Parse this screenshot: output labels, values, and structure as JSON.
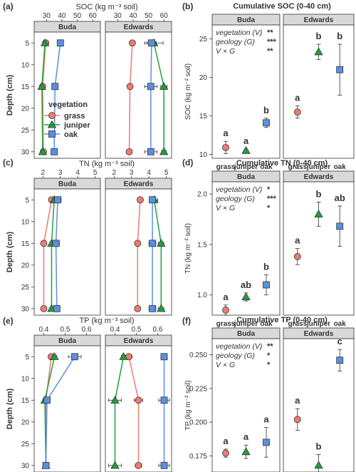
{
  "colors": {
    "grass": "#F07A70",
    "juniper": "#1DA13A",
    "oak": "#5B8FE0",
    "strip": "#D9D9D9",
    "frame": "#333333",
    "text": "#333333"
  },
  "panel_tags": [
    "(a)",
    "(b)",
    "(c)",
    "(d)",
    "(e)",
    "(f)"
  ],
  "left_common": {
    "ylabel": "Depth (cm)",
    "facets": [
      "Buda",
      "Edwards"
    ],
    "depth_ticks": [
      5,
      10,
      15,
      20,
      25,
      30
    ],
    "ylim": [
      31.5,
      2.5
    ]
  },
  "legend": {
    "title": "vegetation",
    "items": [
      "grass",
      "juniper",
      "oak"
    ],
    "markers": [
      "circle",
      "triangle",
      "square"
    ]
  },
  "right_common": {
    "facets": [
      "Buda",
      "Edwards"
    ],
    "categories": [
      "grass",
      "juniper",
      "oak"
    ],
    "sig_lines": [
      "vegetation (V)",
      "geology (G)",
      "V × G"
    ]
  },
  "chart_data": [
    {
      "type": "scatter",
      "title": "SOC (kg m⁻³ soil)",
      "xticks": [
        30,
        40,
        50,
        60
      ],
      "xlim": [
        22,
        65
      ],
      "series": [
        {
          "name": "grass",
          "facet": "Buda",
          "depth": [
            5,
            15,
            30
          ],
          "x": [
            29.5,
            27.5,
            28
          ],
          "err": [
            1,
            0.5,
            0.5
          ]
        },
        {
          "name": "juniper",
          "facet": "Buda",
          "depth": [
            5,
            15,
            30
          ],
          "x": [
            29,
            27,
            27.5
          ],
          "err": [
            0.5,
            0.5,
            0.5
          ]
        },
        {
          "name": "oak",
          "facet": "Buda",
          "depth": [
            5,
            15,
            30
          ],
          "x": [
            39,
            35.5,
            35
          ],
          "err": [
            0.5,
            0.5,
            0.5
          ]
        },
        {
          "name": "grass",
          "facet": "Edwards",
          "depth": [
            5,
            15,
            30
          ],
          "x": [
            39.5,
            38,
            37.5
          ],
          "err": [
            1,
            1,
            0.5
          ]
        },
        {
          "name": "juniper",
          "facet": "Edwards",
          "depth": [
            5,
            15,
            30
          ],
          "x": [
            53.5,
            60,
            60
          ],
          "err": [
            6,
            2,
            1.5
          ]
        },
        {
          "name": "oak",
          "facet": "Edwards",
          "depth": [
            5,
            15,
            30
          ],
          "x": [
            52,
            51.5,
            51.5
          ],
          "err": [
            3,
            4,
            4
          ]
        }
      ]
    },
    {
      "type": "scatter",
      "title": "TN (kg m⁻³ soil)",
      "xticks": [
        2,
        3,
        4,
        5
      ],
      "xlim": [
        1.5,
        5.3
      ],
      "series": [
        {
          "name": "grass",
          "facet": "Buda",
          "depth": [
            5,
            15,
            30
          ],
          "x": [
            2.5,
            2.05,
            2.05
          ],
          "err": [
            0.15,
            0.1,
            0.1
          ]
        },
        {
          "name": "juniper",
          "facet": "Buda",
          "depth": [
            5,
            15,
            30
          ],
          "x": [
            2.65,
            2.5,
            2.5
          ],
          "err": [
            0.1,
            0.1,
            0.1
          ]
        },
        {
          "name": "oak",
          "facet": "Buda",
          "depth": [
            5,
            15,
            30
          ],
          "x": [
            2.85,
            2.75,
            2.8
          ],
          "err": [
            0.2,
            0.2,
            0.15
          ]
        },
        {
          "name": "grass",
          "facet": "Edwards",
          "depth": [
            5,
            15,
            30
          ],
          "x": [
            3.5,
            3.35,
            3.35
          ],
          "err": [
            0.1,
            0.1,
            0.1
          ]
        },
        {
          "name": "juniper",
          "facet": "Edwards",
          "depth": [
            5,
            15,
            30
          ],
          "x": [
            4.3,
            4.7,
            4.7
          ],
          "err": [
            0.2,
            0.15,
            0.15
          ]
        },
        {
          "name": "oak",
          "facet": "Edwards",
          "depth": [
            5,
            15,
            30
          ],
          "x": [
            4.2,
            4.2,
            4.2
          ],
          "err": [
            0.15,
            0.2,
            0.2
          ]
        }
      ]
    },
    {
      "type": "scatter",
      "title": "TP (kg m⁻³ soil)",
      "xticks": [
        0.4,
        0.5,
        0.6
      ],
      "xlim": [
        0.355,
        0.665
      ],
      "series": [
        {
          "name": "grass",
          "facet": "Buda",
          "depth": [
            5,
            15,
            30
          ],
          "x": [
            0.435,
            0.41,
            0.41
          ],
          "err": [
            0.01,
            0.01,
            0.005
          ]
        },
        {
          "name": "juniper",
          "facet": "Buda",
          "depth": [
            5,
            15,
            30
          ],
          "x": [
            0.45,
            0.405,
            0.41
          ],
          "err": [
            0.01,
            0.005,
            0.005
          ]
        },
        {
          "name": "oak",
          "facet": "Buda",
          "depth": [
            5,
            15,
            30
          ],
          "x": [
            0.545,
            0.415,
            0.41
          ],
          "err": [
            0.03,
            0.015,
            0.01
          ]
        },
        {
          "name": "grass",
          "facet": "Edwards",
          "depth": [
            5,
            15,
            30
          ],
          "x": [
            0.465,
            0.51,
            0.51
          ],
          "err": [
            0.015,
            0.02,
            0.015
          ]
        },
        {
          "name": "juniper",
          "facet": "Edwards",
          "depth": [
            5,
            15,
            30
          ],
          "x": [
            0.44,
            0.4,
            0.4
          ],
          "err": [
            0.01,
            0.03,
            0.03
          ]
        },
        {
          "name": "oak",
          "facet": "Edwards",
          "depth": [
            5,
            15,
            30
          ],
          "x": [
            0.63,
            0.63,
            0.63
          ],
          "err": [
            0.015,
            0.025,
            0.025
          ]
        }
      ]
    },
    {
      "type": "scatter",
      "title": "Cumulative SOC (0-40 cm)",
      "ylabel": "SOC (kg m⁻² soil)",
      "yticks": [
        10,
        15,
        20,
        25
      ],
      "ylim": [
        9.5,
        26.8
      ],
      "sig_stars": [
        "**",
        "***",
        "**"
      ],
      "points": [
        {
          "facet": "Buda",
          "veg": "grass",
          "y": 10.9,
          "err": 0.8,
          "letter": "a"
        },
        {
          "facet": "Buda",
          "veg": "juniper",
          "y": 10.5,
          "err": 0.2,
          "letter": "a"
        },
        {
          "facet": "Buda",
          "veg": "oak",
          "y": 14.1,
          "err": 0.6,
          "letter": "b"
        },
        {
          "facet": "Edwards",
          "veg": "grass",
          "y": 15.5,
          "err": 0.8,
          "letter": "a"
        },
        {
          "facet": "Edwards",
          "veg": "juniper",
          "y": 23.3,
          "err": 1.0,
          "letter": "b"
        },
        {
          "facet": "Edwards",
          "veg": "oak",
          "y": 21.0,
          "err": 3.3,
          "letter": "b"
        }
      ]
    },
    {
      "type": "scatter",
      "title": "Cumulative TN (0-40 cm)",
      "ylabel": "TN (kg m⁻² soil)",
      "yticks": [
        1.0,
        1.5,
        2.0
      ],
      "ylim": [
        0.8,
        2.12
      ],
      "sig_stars": [
        "*",
        "***",
        "*"
      ],
      "points": [
        {
          "facet": "Buda",
          "veg": "grass",
          "y": 0.85,
          "err": 0.05,
          "letter": "a"
        },
        {
          "facet": "Buda",
          "veg": "juniper",
          "y": 0.98,
          "err": 0.04,
          "letter": "ab"
        },
        {
          "facet": "Buda",
          "veg": "oak",
          "y": 1.1,
          "err": 0.1,
          "letter": "b"
        },
        {
          "facet": "Edwards",
          "veg": "grass",
          "y": 1.38,
          "err": 0.08,
          "letter": "a"
        },
        {
          "facet": "Edwards",
          "veg": "juniper",
          "y": 1.8,
          "err": 0.12,
          "letter": "b"
        },
        {
          "facet": "Edwards",
          "veg": "oak",
          "y": 1.68,
          "err": 0.2,
          "letter": "ab"
        }
      ]
    },
    {
      "type": "scatter",
      "title": "Cumulative TP (0-40 cm)",
      "ylabel": "TP (kg m⁻² soil)",
      "yticks": [
        0.175,
        0.2,
        0.225,
        0.25
      ],
      "ylim": [
        0.163,
        0.262
      ],
      "sig_stars": [
        "**",
        "*",
        "*"
      ],
      "points": [
        {
          "facet": "Buda",
          "veg": "grass",
          "y": 0.177,
          "err": 0.003,
          "letter": "a"
        },
        {
          "facet": "Buda",
          "veg": "juniper",
          "y": 0.178,
          "err": 0.005,
          "letter": "a"
        },
        {
          "facet": "Buda",
          "veg": "oak",
          "y": 0.185,
          "err": 0.011,
          "letter": "a"
        },
        {
          "facet": "Edwards",
          "veg": "grass",
          "y": 0.202,
          "err": 0.008,
          "letter": "a"
        },
        {
          "facet": "Edwards",
          "veg": "juniper",
          "y": 0.168,
          "err": 0.008,
          "letter": "b"
        },
        {
          "facet": "Edwards",
          "veg": "oak",
          "y": 0.246,
          "err": 0.008,
          "letter": "c"
        }
      ]
    }
  ]
}
